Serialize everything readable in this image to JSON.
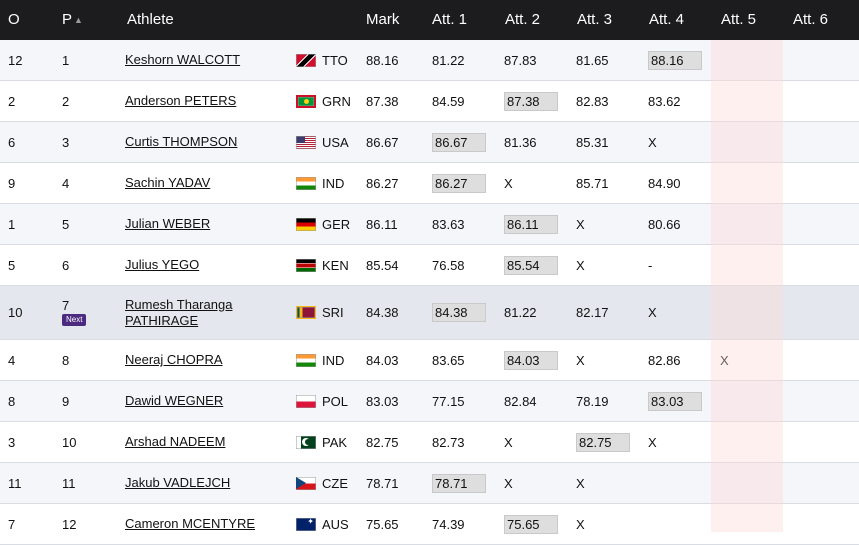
{
  "header": {
    "order": "O",
    "position": "P",
    "athlete": "Athlete",
    "mark": "Mark",
    "att1": "Att. 1",
    "att2": "Att. 2",
    "att3": "Att. 3",
    "att4": "Att. 4",
    "att5": "Att. 5",
    "att6": "Att. 6",
    "sort_icon": "sort-ascending-icon"
  },
  "rows": [
    {
      "order": "12",
      "pos": "1",
      "name": "Keshorn WALCOTT",
      "country": "TTO",
      "mark": "88.16",
      "atts": [
        "81.22",
        "87.83",
        "81.65",
        "88.16",
        "",
        ""
      ],
      "best": 3
    },
    {
      "order": "2",
      "pos": "2",
      "name": "Anderson PETERS",
      "country": "GRN",
      "mark": "87.38",
      "atts": [
        "84.59",
        "87.38",
        "82.83",
        "83.62",
        "",
        ""
      ],
      "best": 1
    },
    {
      "order": "6",
      "pos": "3",
      "name": "Curtis THOMPSON",
      "country": "USA",
      "mark": "86.67",
      "atts": [
        "86.67",
        "81.36",
        "85.31",
        "X",
        "",
        ""
      ],
      "best": 0
    },
    {
      "order": "9",
      "pos": "4",
      "name": "Sachin YADAV",
      "country": "IND",
      "mark": "86.27",
      "atts": [
        "86.27",
        "X",
        "85.71",
        "84.90",
        "",
        ""
      ],
      "best": 0
    },
    {
      "order": "1",
      "pos": "5",
      "name": "Julian WEBER",
      "country": "GER",
      "mark": "86.11",
      "atts": [
        "83.63",
        "86.11",
        "X",
        "80.66",
        "",
        ""
      ],
      "best": 1
    },
    {
      "order": "5",
      "pos": "6",
      "name": "Julius YEGO",
      "country": "KEN",
      "mark": "85.54",
      "atts": [
        "76.58",
        "85.54",
        "X",
        "-",
        "",
        ""
      ],
      "best": 1
    },
    {
      "order": "10",
      "pos": "7",
      "name": "Rumesh Tharanga",
      "name2": "PATHIRAGE",
      "badge": "Next",
      "country": "SRI",
      "mark": "84.38",
      "atts": [
        "84.38",
        "81.22",
        "82.17",
        "X",
        "",
        ""
      ],
      "best": 0
    },
    {
      "order": "4",
      "pos": "8",
      "name": "Neeraj CHOPRA",
      "country": "IND",
      "mark": "84.03",
      "atts": [
        "83.65",
        "84.03",
        "X",
        "82.86",
        "X",
        ""
      ],
      "best": 1
    },
    {
      "order": "8",
      "pos": "9",
      "name": "Dawid WEGNER",
      "country": "POL",
      "mark": "83.03",
      "atts": [
        "77.15",
        "82.84",
        "78.19",
        "83.03",
        "",
        ""
      ],
      "best": 3
    },
    {
      "order": "3",
      "pos": "10",
      "name": "Arshad NADEEM",
      "country": "PAK",
      "mark": "82.75",
      "atts": [
        "82.73",
        "X",
        "82.75",
        "X",
        "",
        ""
      ],
      "best": 2
    },
    {
      "order": "11",
      "pos": "11",
      "name": "Jakub VADLEJCH",
      "country": "CZE",
      "mark": "78.71",
      "atts": [
        "78.71",
        "X",
        "X",
        "",
        "",
        ""
      ],
      "best": 0
    },
    {
      "order": "7",
      "pos": "12",
      "name": "Cameron MCENTYRE",
      "country": "AUS",
      "mark": "75.65",
      "atts": [
        "74.39",
        "75.65",
        "X",
        "",
        "",
        ""
      ],
      "best": 1
    }
  ]
}
